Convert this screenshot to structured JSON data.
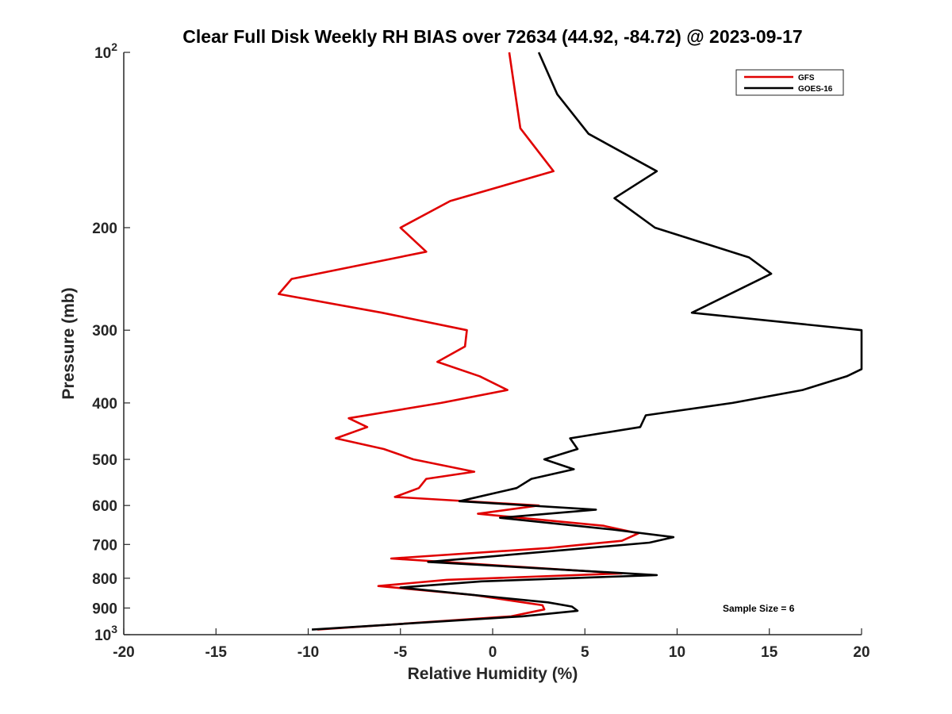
{
  "chart_data": {
    "type": "line",
    "title": "Clear Full Disk Weekly RH BIAS over 72634 (44.92, -84.72) @ 2023-09-17",
    "xlabel": "Relative Humidity (%)",
    "ylabel": "Pressure (mb)",
    "xlim": [
      -20,
      20
    ],
    "ylim": [
      100,
      1000
    ],
    "y_scale": "log",
    "y_reversed": true,
    "x_ticks": [
      -20,
      -15,
      -10,
      -5,
      0,
      5,
      10,
      15,
      20
    ],
    "x_tick_labels": [
      "-20",
      "-15",
      "-10",
      "-5",
      "0",
      "5",
      "10",
      "15",
      "20"
    ],
    "y_ticks": [
      100,
      200,
      300,
      400,
      500,
      600,
      700,
      800,
      900,
      1000
    ],
    "y_tick_labels": [
      {
        "base": "10",
        "exp": "2"
      },
      {
        "base": "200",
        "exp": ""
      },
      {
        "base": "300",
        "exp": ""
      },
      {
        "base": "400",
        "exp": ""
      },
      {
        "base": "500",
        "exp": ""
      },
      {
        "base": "600",
        "exp": ""
      },
      {
        "base": "700",
        "exp": ""
      },
      {
        "base": "800",
        "exp": ""
      },
      {
        "base": "900",
        "exp": ""
      },
      {
        "base": "10",
        "exp": "3"
      }
    ],
    "legend_position": "top-right",
    "annotation": "Sample Size = 6",
    "series": [
      {
        "name": "GFS",
        "color": "#e00000",
        "points": [
          [
            0.9,
            100
          ],
          [
            1.5,
            135
          ],
          [
            3.3,
            160
          ],
          [
            -2.3,
            180
          ],
          [
            -5,
            200
          ],
          [
            -3.6,
            220
          ],
          [
            -10.9,
            245
          ],
          [
            -11.6,
            260
          ],
          [
            -6,
            280
          ],
          [
            -1.4,
            300
          ],
          [
            -1.5,
            320
          ],
          [
            -3.0,
            340
          ],
          [
            -0.7,
            360
          ],
          [
            0.8,
            380
          ],
          [
            -2.8,
            400
          ],
          [
            -7.8,
            425
          ],
          [
            -6.8,
            440
          ],
          [
            -8.5,
            460
          ],
          [
            -5.9,
            480
          ],
          [
            -4.3,
            500
          ],
          [
            -1.0,
            525
          ],
          [
            -3.6,
            540
          ],
          [
            -4.0,
            560
          ],
          [
            -5.3,
            580
          ],
          [
            2.5,
            600
          ],
          [
            -0.8,
            620
          ],
          [
            6.0,
            650
          ],
          [
            7.9,
            670
          ],
          [
            7.0,
            690
          ],
          [
            3.0,
            710
          ],
          [
            -5.5,
            740
          ],
          [
            7.0,
            785
          ],
          [
            -2.5,
            805
          ],
          [
            -6.2,
            825
          ],
          [
            -1.0,
            855
          ],
          [
            2.7,
            890
          ],
          [
            2.8,
            905
          ],
          [
            1.0,
            930
          ],
          [
            -9.5,
            980
          ]
        ]
      },
      {
        "name": "GOES-16",
        "color": "#000000",
        "points": [
          [
            2.5,
            100
          ],
          [
            3.5,
            118
          ],
          [
            5.2,
            138
          ],
          [
            8.9,
            160
          ],
          [
            6.6,
            178
          ],
          [
            8.8,
            200
          ],
          [
            13.9,
            225
          ],
          [
            15.1,
            240
          ],
          [
            10.8,
            280
          ],
          [
            20,
            300
          ],
          [
            20,
            350
          ],
          [
            19.2,
            360
          ],
          [
            16.8,
            380
          ],
          [
            13.0,
            400
          ],
          [
            8.3,
            420
          ],
          [
            8.0,
            440
          ],
          [
            4.2,
            460
          ],
          [
            4.6,
            480
          ],
          [
            2.8,
            500
          ],
          [
            4.4,
            520
          ],
          [
            2.1,
            540
          ],
          [
            1.3,
            560
          ],
          [
            -1.8,
            590
          ],
          [
            5.6,
            610
          ],
          [
            0.4,
            630
          ],
          [
            6.5,
            660
          ],
          [
            9.8,
            680
          ],
          [
            8.5,
            695
          ],
          [
            4.0,
            715
          ],
          [
            -3.5,
            750
          ],
          [
            8.9,
            790
          ],
          [
            -0.6,
            810
          ],
          [
            -5.0,
            830
          ],
          [
            -1.0,
            855
          ],
          [
            3.0,
            880
          ],
          [
            4.3,
            895
          ],
          [
            4.6,
            910
          ],
          [
            1.6,
            930
          ],
          [
            -9.8,
            980
          ]
        ]
      }
    ]
  }
}
